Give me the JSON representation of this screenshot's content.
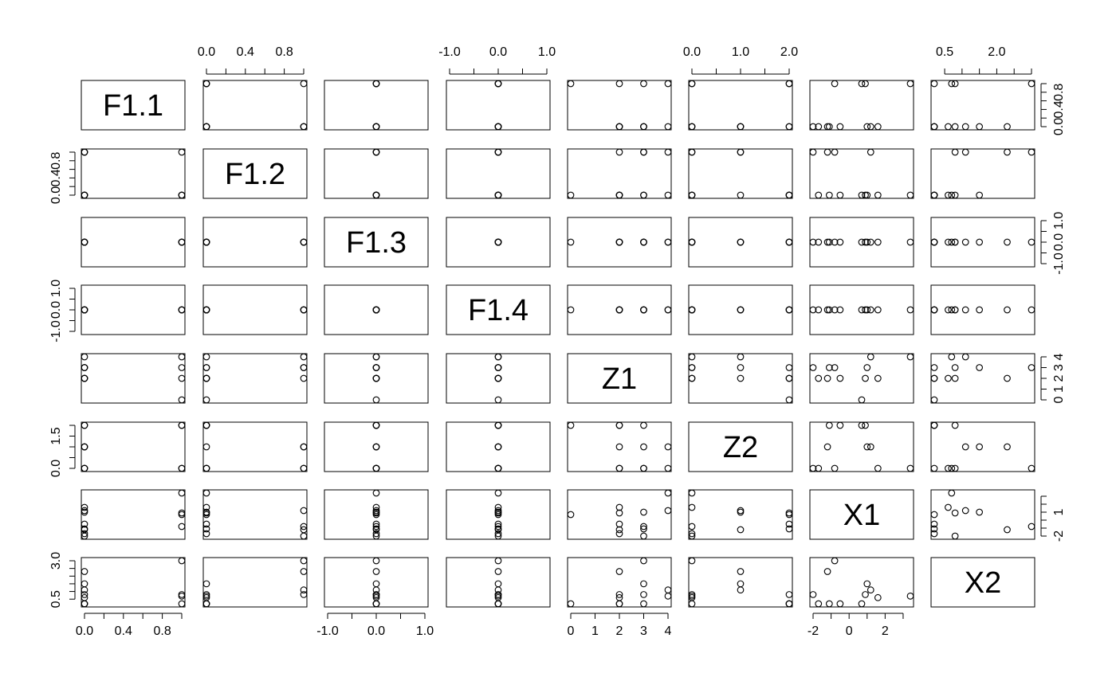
{
  "chart_data": {
    "type": "scatter",
    "layout": "scatterplot-matrix",
    "variables": [
      {
        "name": "F1.1",
        "range": [
          0,
          1
        ],
        "ticks": [
          0,
          0.2,
          0.4,
          0.6,
          0.8,
          1.0
        ],
        "tick_labels": [
          "0.0",
          "",
          "0.4",
          "",
          "0.8",
          ""
        ]
      },
      {
        "name": "F1.2",
        "range": [
          0,
          1
        ],
        "ticks": [
          0,
          0.2,
          0.4,
          0.6,
          0.8,
          1.0
        ],
        "tick_labels": [
          "0.0",
          "",
          "0.4",
          "",
          "0.8",
          ""
        ]
      },
      {
        "name": "F1.3",
        "range": [
          -1,
          1
        ],
        "ticks": [
          -1,
          -0.5,
          0,
          0.5,
          1
        ],
        "tick_labels": [
          "-1.0",
          "",
          "0.0",
          "",
          "1.0"
        ]
      },
      {
        "name": "F1.4",
        "range": [
          -1,
          1
        ],
        "ticks": [
          -1,
          -0.5,
          0,
          0.5,
          1
        ],
        "tick_labels": [
          "-1.0",
          "",
          "0.0",
          "",
          "1.0"
        ]
      },
      {
        "name": "Z1",
        "range": [
          0,
          4
        ],
        "ticks": [
          0,
          1,
          2,
          3,
          4
        ],
        "tick_labels": [
          "0",
          "1",
          "2",
          "3",
          "4"
        ]
      },
      {
        "name": "Z2",
        "range": [
          0,
          2
        ],
        "ticks": [
          0,
          0.5,
          1,
          1.5,
          2
        ],
        "tick_labels": [
          "0.0",
          "",
          "1.0",
          "",
          "2.0"
        ],
        "tick_labels_left": [
          "0.0",
          "",
          "",
          "1.5",
          ""
        ]
      },
      {
        "name": "X1",
        "range": [
          -2,
          3.4
        ],
        "ticks": [
          -2,
          -1,
          0,
          1,
          2,
          3
        ],
        "tick_labels": [
          "-2",
          "",
          "0",
          "",
          "2",
          ""
        ],
        "tick_labels_right": [
          "-2",
          "",
          "",
          "1",
          "",
          ""
        ]
      },
      {
        "name": "X2",
        "range": [
          0.2,
          3.0
        ],
        "ticks": [
          0.5,
          1,
          1.5,
          2,
          2.5,
          3
        ],
        "tick_labels": [
          "0.5",
          "",
          "",
          "2.0",
          "",
          ""
        ],
        "tick_labels_left": [
          "0.5",
          "",
          "",
          "",
          "",
          "3.0"
        ]
      }
    ],
    "observations": [
      {
        "F1.1": 1,
        "F1.2": 0,
        "F1.3": 0,
        "F1.4": 0,
        "Z1": 0,
        "Z2": 2,
        "X1": 0.7,
        "X2": 0.2
      },
      {
        "F1.1": 0,
        "F1.2": 1,
        "F1.3": 0,
        "F1.4": 0,
        "Z1": 3,
        "Z2": 0,
        "X1": -2.0,
        "X2": 0.8
      },
      {
        "F1.1": 0,
        "F1.2": 0,
        "F1.3": 0,
        "F1.4": 0,
        "Z1": 2,
        "Z2": 0,
        "X1": -1.7,
        "X2": 0.2
      },
      {
        "F1.1": 1,
        "F1.2": 0,
        "F1.3": 0,
        "F1.4": 0,
        "Z1": 4,
        "Z2": 0,
        "X1": 3.4,
        "X2": 0.7
      },
      {
        "F1.1": 0,
        "F1.2": 1,
        "F1.3": 0,
        "F1.4": 0,
        "Z1": 2,
        "Z2": 1,
        "X1": -1.2,
        "X2": 2.3
      },
      {
        "F1.1": 0,
        "F1.2": 0,
        "F1.3": 0,
        "F1.4": 0,
        "Z1": 3,
        "Z2": 1,
        "X1": 1.0,
        "X2": 1.5
      },
      {
        "F1.1": 1,
        "F1.2": 0,
        "F1.3": 0,
        "F1.4": 0,
        "Z1": 2,
        "Z2": 2,
        "X1": 0.9,
        "X2": 0.8
      },
      {
        "F1.1": 0,
        "F1.2": 1,
        "F1.3": 0,
        "F1.4": 0,
        "Z1": 4,
        "Z2": 1,
        "X1": 1.2,
        "X2": 1.1
      },
      {
        "F1.1": 0,
        "F1.2": 0,
        "F1.3": 0,
        "F1.4": 0,
        "Z1": 3,
        "Z2": 2,
        "X1": -1.1,
        "X2": 0.2
      },
      {
        "F1.1": 1,
        "F1.2": 1,
        "F1.3": 0,
        "F1.4": 0,
        "Z1": 3,
        "Z2": 0,
        "X1": -0.8,
        "X2": 3.0
      },
      {
        "F1.1": 0,
        "F1.2": 0,
        "F1.3": 0,
        "F1.4": 0,
        "Z1": 2,
        "Z2": 2,
        "X1": -0.5,
        "X2": 0.2
      },
      {
        "F1.1": 0,
        "F1.2": 0,
        "F1.3": 0,
        "F1.4": 0,
        "Z1": 2,
        "Z2": 0,
        "X1": 1.6,
        "X2": 0.6
      }
    ],
    "axes": {
      "top": [
        1,
        3,
        5,
        7
      ],
      "bottom": [
        0,
        2,
        4,
        6
      ],
      "left": [
        1,
        3,
        5,
        7
      ],
      "right": [
        0,
        2,
        4,
        6
      ]
    },
    "marker": "open-circle",
    "grid": false
  }
}
